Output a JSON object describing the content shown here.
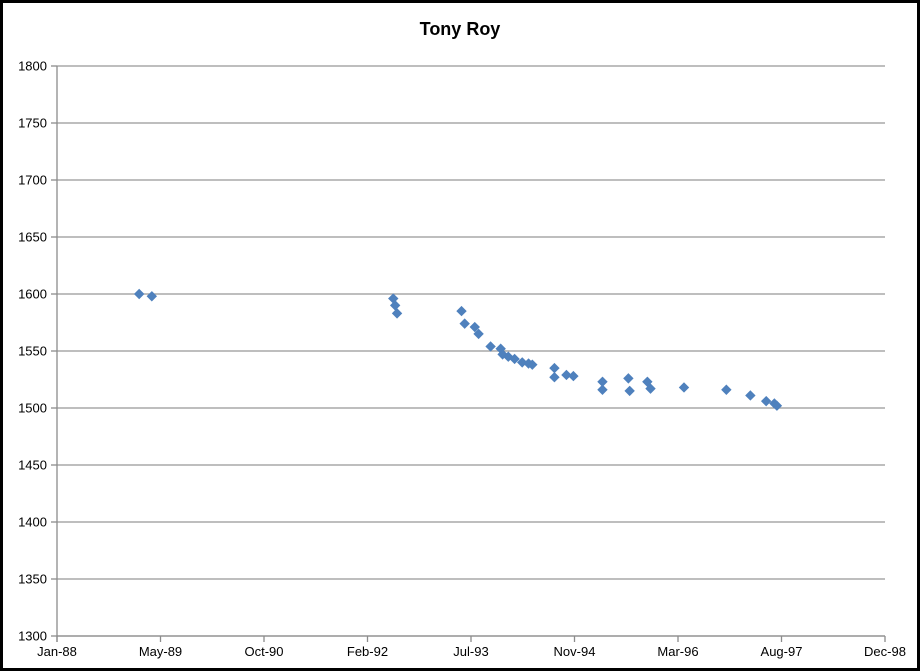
{
  "window": {
    "background": "#ffffff",
    "border_color": "#000000"
  },
  "colors": {
    "gridline": "#969696",
    "axis": "#8c8c8c",
    "text": "#000000",
    "marker": "#4F81BD",
    "title": "#000000"
  },
  "chart_data": {
    "type": "scatter",
    "title": "Tony Roy",
    "xlabel": "",
    "ylabel": "",
    "grid": true,
    "legend": "none",
    "marker": {
      "shape": "diamond",
      "color": "#4F81BD",
      "size": 9
    },
    "x_axis": {
      "kind": "date",
      "min_label": "Jan-88",
      "max_label": "Dec-98",
      "total_months": 131,
      "tick_labels": [
        "Jan-88",
        "May-89",
        "Oct-90",
        "Feb-92",
        "Jul-93",
        "Nov-94",
        "Mar-96",
        "Aug-97",
        "Dec-98"
      ],
      "tick_months": [
        0,
        16,
        33,
        49,
        66,
        82,
        98,
        115,
        131
      ]
    },
    "y_axis": {
      "min": 1300,
      "max": 1800,
      "step": 50,
      "tick_labels": [
        "1300",
        "1350",
        "1400",
        "1450",
        "1500",
        "1550",
        "1600",
        "1650",
        "1700",
        "1750",
        "1800"
      ]
    },
    "series": [
      {
        "name": "Tony Roy",
        "points": [
          {
            "date": "Feb-89",
            "month": 13,
            "value": 1600
          },
          {
            "date": "Apr-89",
            "month": 15,
            "value": 1598
          },
          {
            "date": "Jun-92",
            "month": 53.2,
            "value": 1596
          },
          {
            "date": "Jun-92",
            "month": 53.5,
            "value": 1590
          },
          {
            "date": "Jul-92",
            "month": 53.8,
            "value": 1583
          },
          {
            "date": "May-93",
            "month": 64.0,
            "value": 1585
          },
          {
            "date": "May-93",
            "month": 64.5,
            "value": 1574
          },
          {
            "date": "Jul-93",
            "month": 66.1,
            "value": 1571
          },
          {
            "date": "Jul-93",
            "month": 66.7,
            "value": 1565
          },
          {
            "date": "Sep-93",
            "month": 68.6,
            "value": 1554
          },
          {
            "date": "Nov-93",
            "month": 70.2,
            "value": 1552
          },
          {
            "date": "Nov-93",
            "month": 70.5,
            "value": 1547
          },
          {
            "date": "Dec-93",
            "month": 71.4,
            "value": 1545
          },
          {
            "date": "Jan-94",
            "month": 72.4,
            "value": 1543
          },
          {
            "date": "Feb-94",
            "month": 73.6,
            "value": 1540
          },
          {
            "date": "Mar-94",
            "month": 74.6,
            "value": 1539
          },
          {
            "date": "Apr-94",
            "month": 75.2,
            "value": 1538
          },
          {
            "date": "Jul-94",
            "month": 78.7,
            "value": 1535
          },
          {
            "date": "Jul-94",
            "month": 78.7,
            "value": 1527
          },
          {
            "date": "Sep-94",
            "month": 80.6,
            "value": 1529
          },
          {
            "date": "Oct-94",
            "month": 81.7,
            "value": 1528
          },
          {
            "date": "Mar-95",
            "month": 86.3,
            "value": 1523
          },
          {
            "date": "Mar-95",
            "month": 86.3,
            "value": 1516
          },
          {
            "date": "Jul-95",
            "month": 90.4,
            "value": 1526
          },
          {
            "date": "Jul-95",
            "month": 90.6,
            "value": 1515
          },
          {
            "date": "Oct-95",
            "month": 93.4,
            "value": 1523
          },
          {
            "date": "Nov-95",
            "month": 93.9,
            "value": 1517
          },
          {
            "date": "Apr-96",
            "month": 99.2,
            "value": 1518
          },
          {
            "date": "Nov-96",
            "month": 105.9,
            "value": 1516
          },
          {
            "date": "Feb-97",
            "month": 109.7,
            "value": 1511
          },
          {
            "date": "May-97",
            "month": 112.2,
            "value": 1506
          },
          {
            "date": "Jun-97",
            "month": 113.5,
            "value": 1504
          },
          {
            "date": "Jul-97",
            "month": 113.9,
            "value": 1502
          }
        ]
      }
    ]
  }
}
